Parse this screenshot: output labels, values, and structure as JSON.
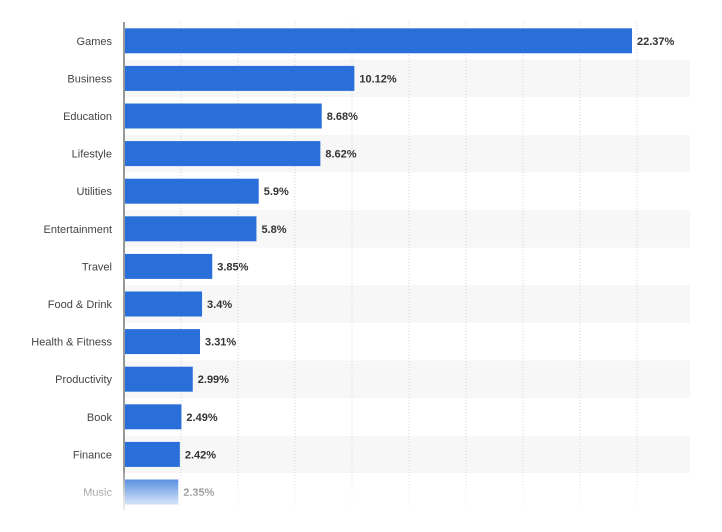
{
  "chart_data": {
    "type": "bar",
    "orientation": "horizontal",
    "categories": [
      "Games",
      "Business",
      "Education",
      "Lifestyle",
      "Utilities",
      "Entertainment",
      "Travel",
      "Food & Drink",
      "Health & Fitness",
      "Productivity",
      "Book",
      "Finance",
      "Music"
    ],
    "values": [
      22.37,
      10.12,
      8.68,
      8.62,
      5.9,
      5.8,
      3.85,
      3.4,
      3.31,
      2.99,
      2.49,
      2.42,
      2.35
    ],
    "value_labels": [
      "22.37%",
      "10.12%",
      "8.68%",
      "8.62%",
      "5.9%",
      "5.8%",
      "3.85%",
      "3.4%",
      "3.31%",
      "2.99%",
      "2.49%",
      "2.42%",
      "2.35%"
    ],
    "xlim": [
      0,
      25
    ],
    "grid": true,
    "bar_color": "#2a6fd9",
    "label_color": "#333333",
    "category_label_color": "#444444",
    "band_color": "#f7f7f7"
  }
}
